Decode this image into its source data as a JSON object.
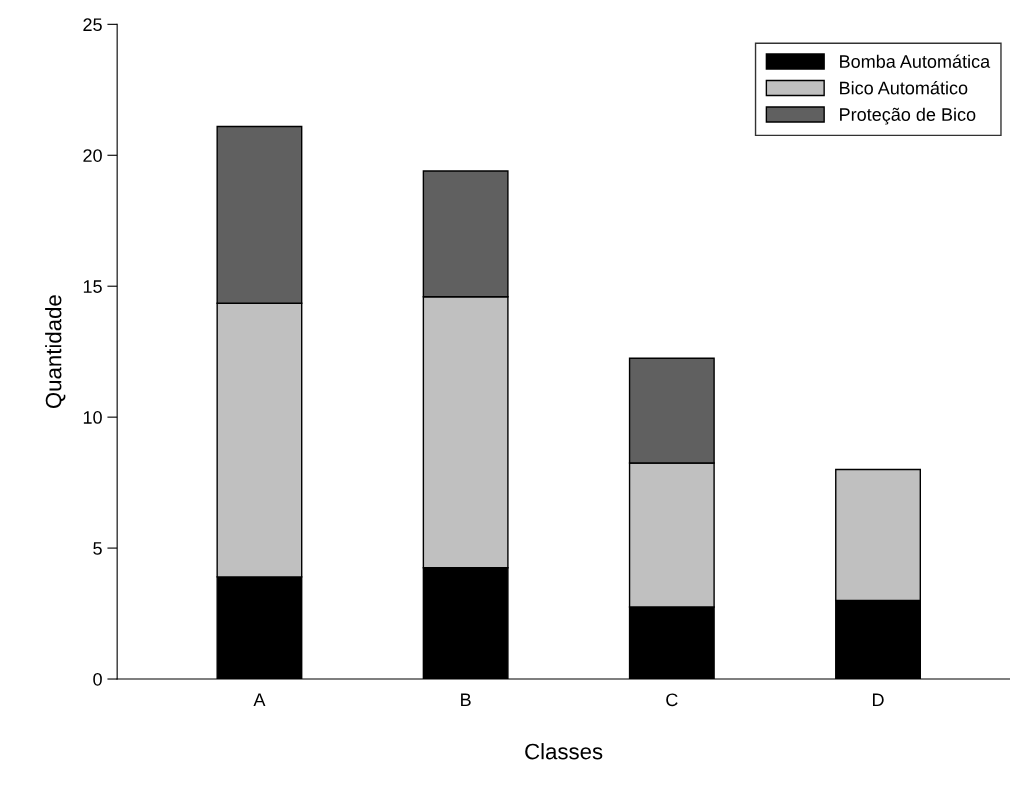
{
  "chart_data": {
    "type": "bar",
    "stacked": true,
    "xlabel": "Classes",
    "ylabel": "Quantidade",
    "categories": [
      "A",
      "B",
      "C",
      "D"
    ],
    "series": [
      {
        "name": "Bomba Automática",
        "color": "#000000",
        "values": [
          3.9,
          4.25,
          2.75,
          3.0
        ]
      },
      {
        "name": "Bico Automático",
        "color": "#c0c0c0",
        "values": [
          10.45,
          10.35,
          5.5,
          5.0
        ]
      },
      {
        "name": "Proteção de Bico",
        "color": "#606060",
        "values": [
          6.75,
          4.8,
          4.0,
          null
        ]
      }
    ],
    "ylim": [
      0,
      25
    ],
    "yticks": [
      0,
      5,
      10,
      15,
      20,
      25
    ],
    "grid": false,
    "legend": "top right"
  }
}
